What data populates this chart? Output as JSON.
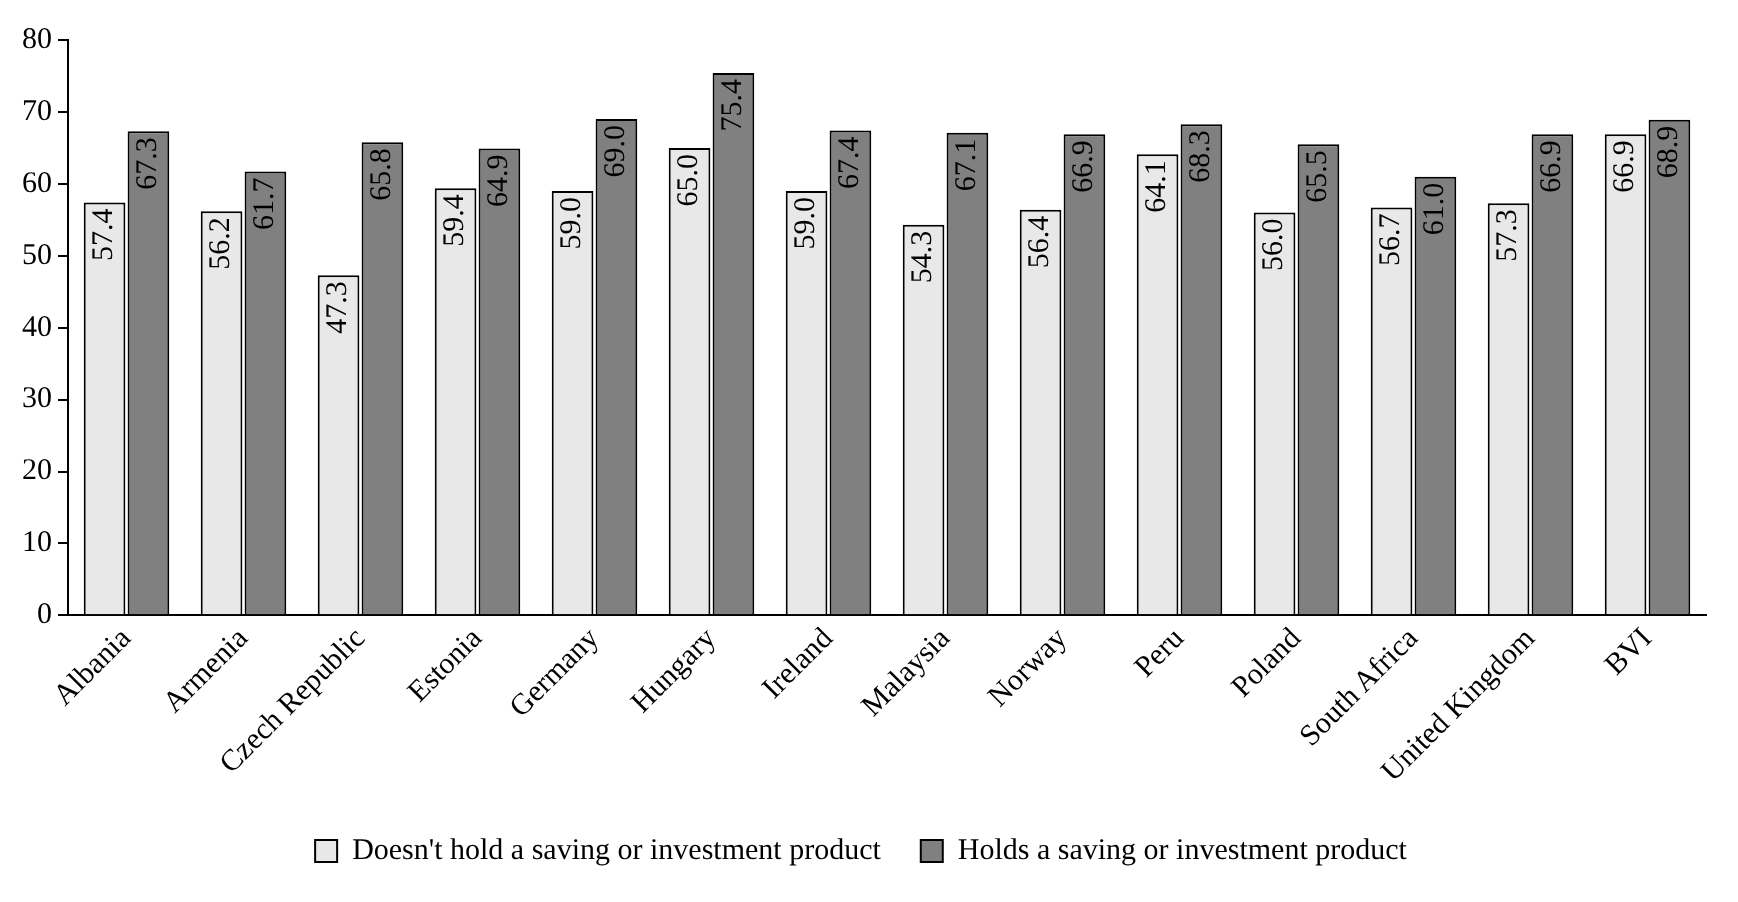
{
  "chart_data": {
    "type": "bar",
    "categories": [
      "Albania",
      "Armenia",
      "Czech Republic",
      "Estonia",
      "Germany",
      "Hungary",
      "Ireland",
      "Malaysia",
      "Norway",
      "Peru",
      "Poland",
      "South Africa",
      "United Kingdom",
      "BVI"
    ],
    "series": [
      {
        "name": "Doesn't hold a saving or investment product",
        "color": "#e8e8e8",
        "values": [
          57.4,
          56.2,
          47.3,
          59.4,
          59.0,
          65.0,
          59.0,
          54.3,
          56.4,
          64.1,
          56.0,
          56.7,
          57.3,
          66.9
        ],
        "value_labels": [
          "57.4",
          "56.2",
          "47.3",
          "59.4",
          "59.0",
          "65.0",
          "59.0",
          "54.3",
          "56.4",
          "64.1",
          "56.0",
          "56.7",
          "57.3",
          "66.9"
        ]
      },
      {
        "name": "Holds a saving or investment product",
        "color": "#808080",
        "values": [
          67.3,
          61.7,
          65.8,
          64.9,
          69.0,
          75.4,
          67.4,
          67.1,
          66.9,
          68.3,
          65.5,
          61.0,
          66.9,
          68.9
        ],
        "value_labels": [
          "67.3",
          "61.7",
          "65.8",
          "64.9",
          "69.0",
          "75.4",
          "67.4",
          "67.1",
          "66.9",
          "68.3",
          "65.5",
          "61.0",
          "66.9",
          "68.9"
        ]
      }
    ],
    "ylim": [
      0,
      80
    ],
    "yticks": [
      0,
      10,
      20,
      30,
      40,
      50,
      60,
      70,
      80
    ],
    "grid": false,
    "legend": "bottom"
  }
}
